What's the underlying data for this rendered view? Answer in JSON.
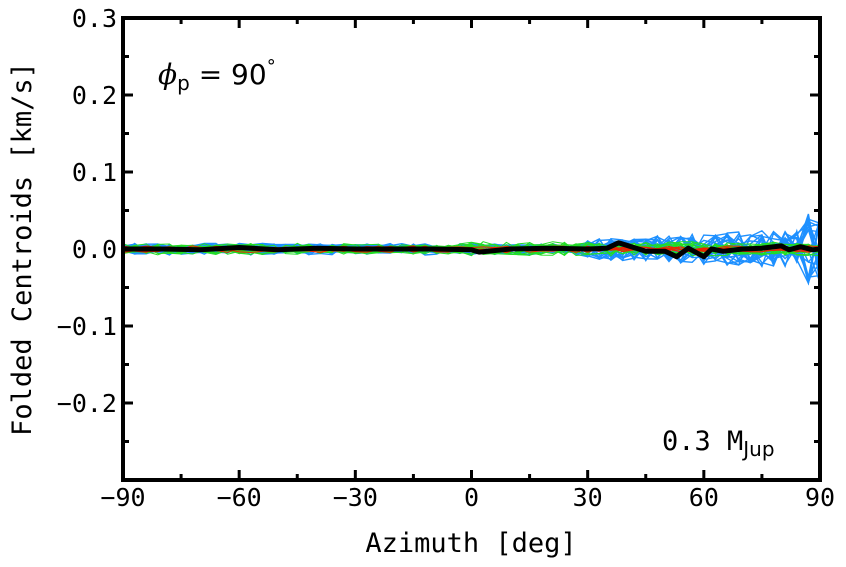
{
  "chart_data": {
    "type": "line",
    "xlabel": "Azimuth [deg]",
    "ylabel": "Folded Centroids [km/s]",
    "xlim": [
      -90,
      90
    ],
    "ylim": [
      -0.3,
      0.3
    ],
    "x_ticks": [
      -90,
      -60,
      -30,
      0,
      30,
      60,
      90
    ],
    "x_tick_labels": [
      "−90",
      "−60",
      "−30",
      "0",
      "30",
      "60",
      "90"
    ],
    "y_ticks": [
      0.3,
      0.2,
      0.1,
      0.0,
      -0.1,
      -0.2
    ],
    "y_tick_labels": [
      "0.3",
      "0.2",
      "0.1",
      "0.0",
      "−0.1",
      "−0.2"
    ],
    "grid": false,
    "annotations": {
      "phi_symbol": "ϕ",
      "phi_subscript": "p",
      "phi_rest": " = 90",
      "phi_degree": "°",
      "mass_value": "0.3 M",
      "mass_subscript": "Jup"
    },
    "colors": {
      "blue": "#1e90ff",
      "green": "#22dd22",
      "red": "#ee2200",
      "black": "#000000"
    },
    "series": [
      {
        "color": "black",
        "x": [
          -90,
          -80,
          -70,
          -60,
          -50,
          -40,
          -30,
          -20,
          -10,
          0,
          2,
          10,
          20,
          30,
          35,
          38,
          40,
          45,
          50,
          53,
          56,
          60,
          62,
          65,
          70,
          75,
          80,
          82,
          85,
          88,
          90
        ],
        "y": [
          0.0,
          0.0,
          -0.001,
          0.002,
          -0.001,
          0.001,
          0.0,
          0.0,
          0.0,
          -0.001,
          -0.004,
          0.0,
          0.001,
          0.0,
          0.001,
          0.008,
          0.005,
          -0.003,
          -0.003,
          -0.01,
          0.001,
          -0.01,
          0.0,
          -0.003,
          0.0,
          0.001,
          0.004,
          -0.001,
          0.003,
          -0.001,
          0.0
        ]
      }
    ]
  }
}
